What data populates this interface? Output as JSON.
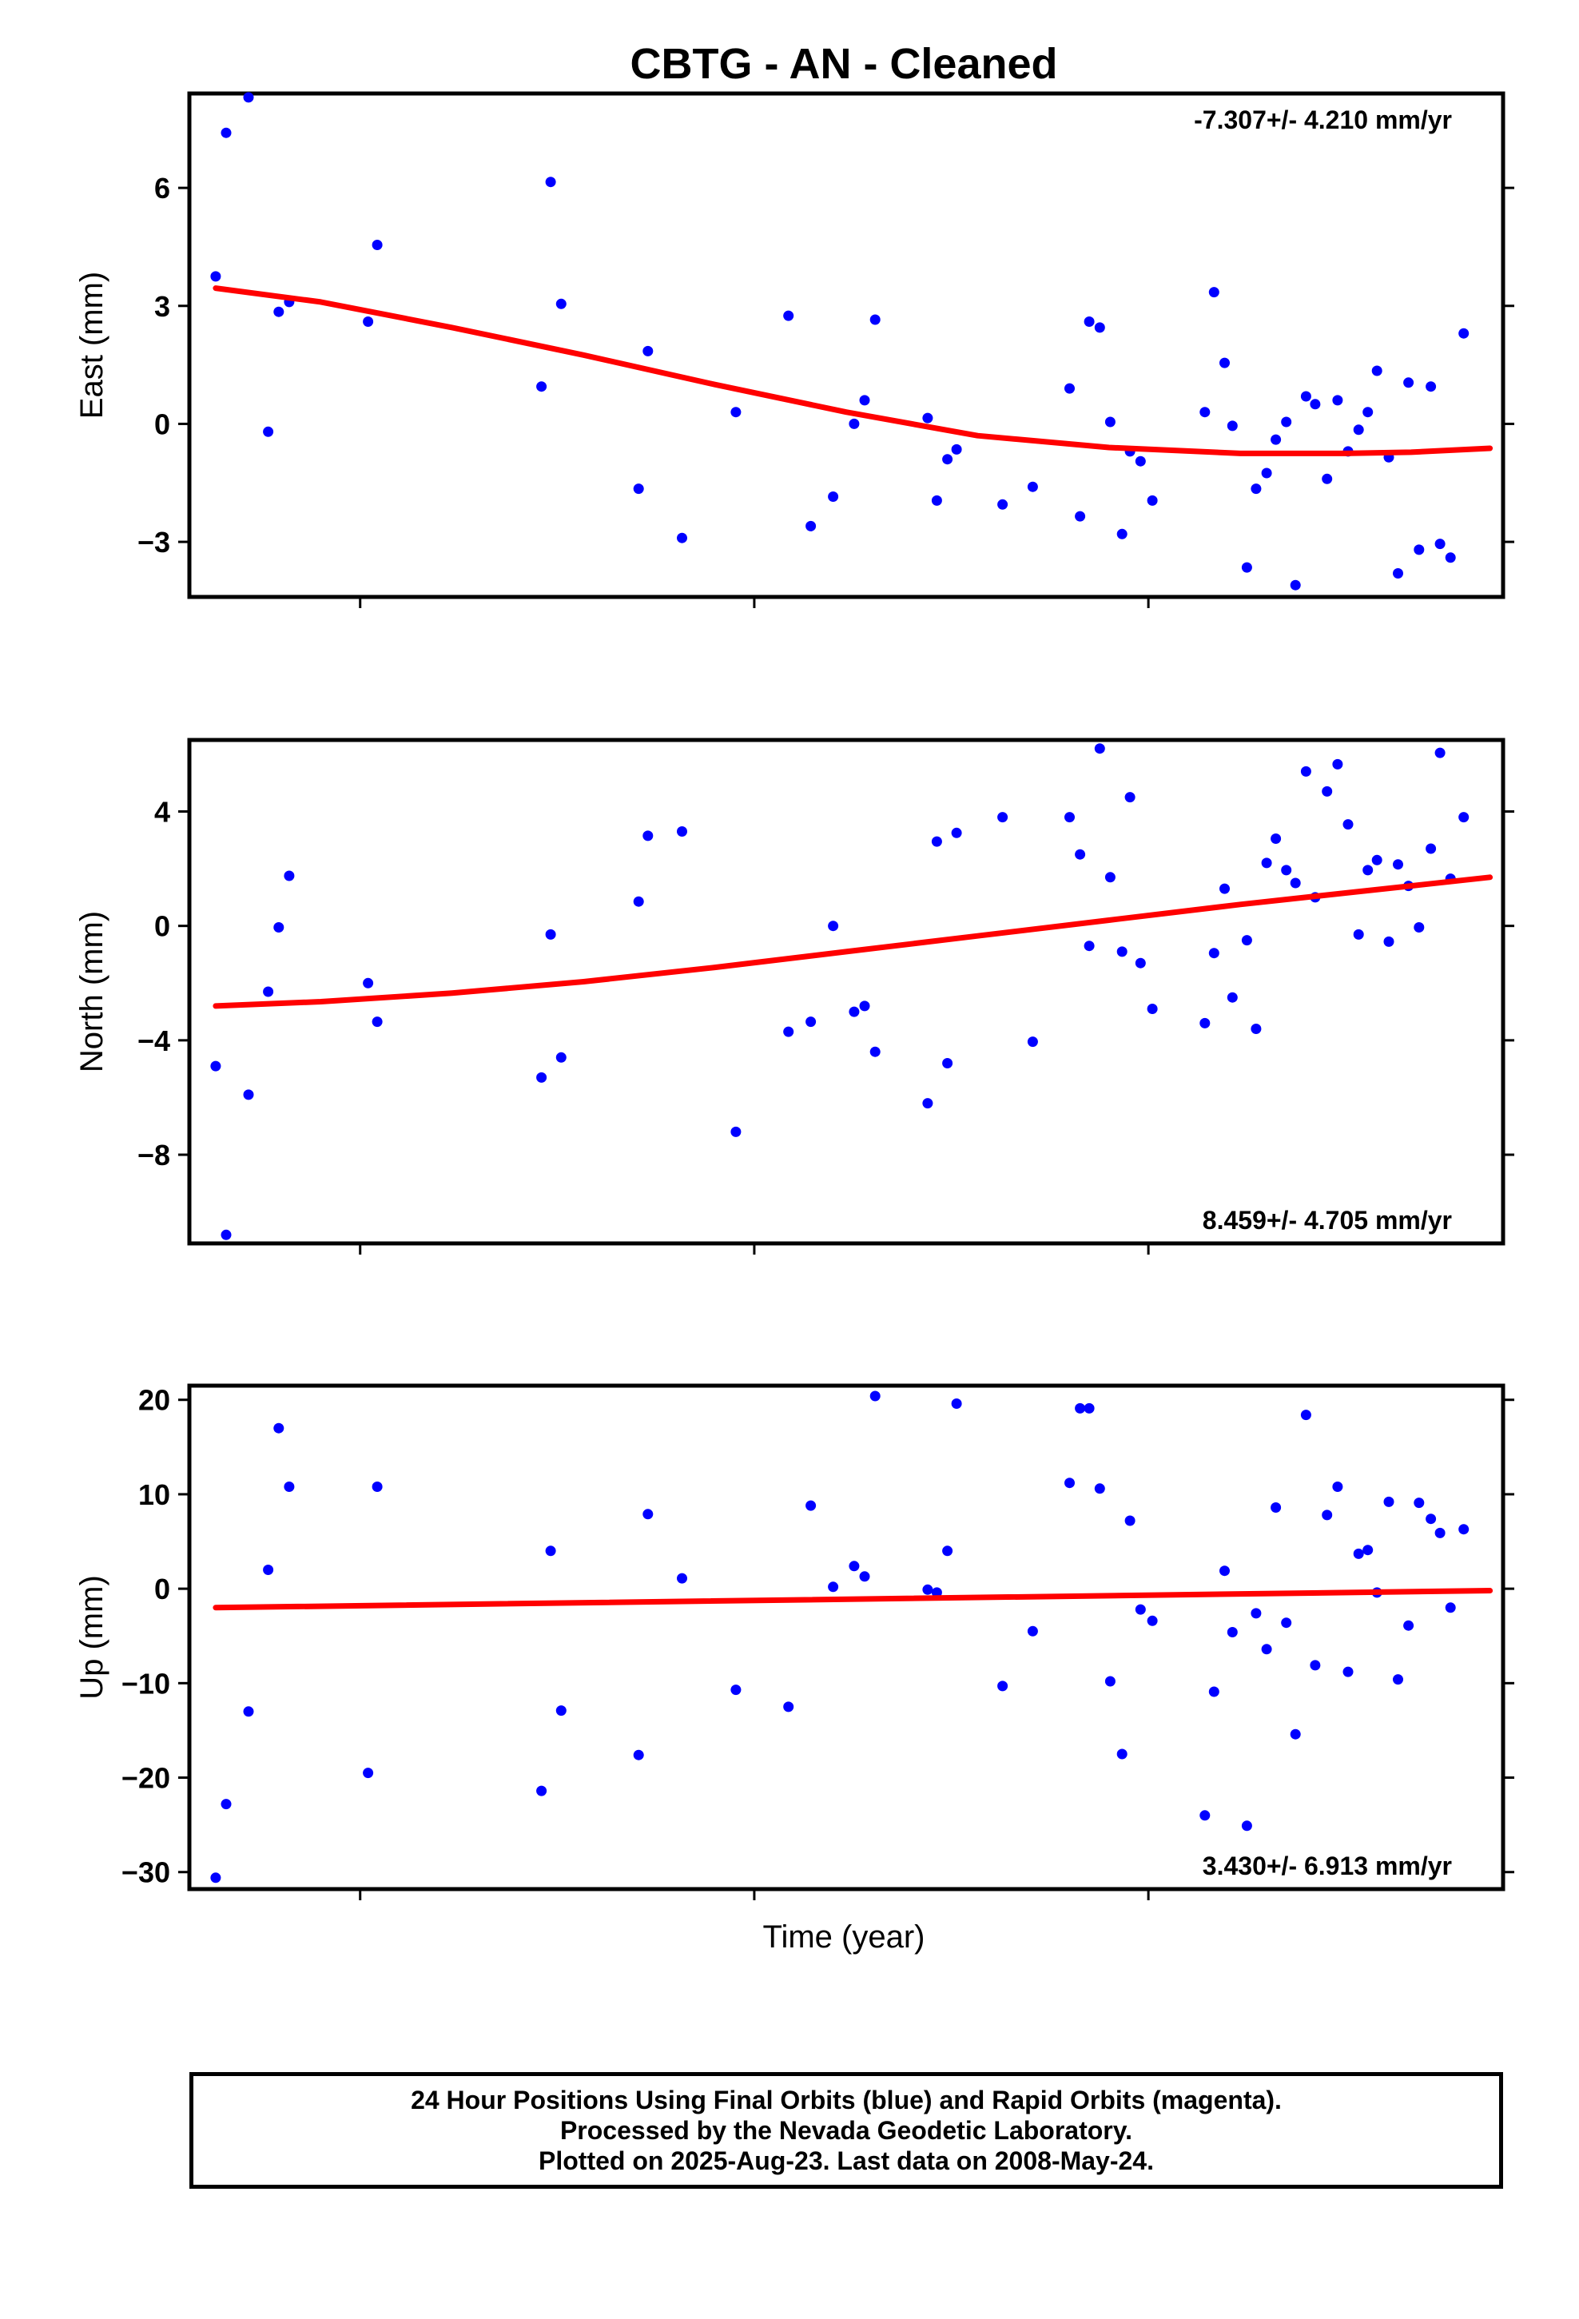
{
  "title": "CBTG  - AN - Cleaned",
  "xlabel": "Time (year)",
  "footer": {
    "line1": "24 Hour Positions Using Final Orbits (blue) and Rapid Orbits (magenta).",
    "line2": "Processed by the Nevada Geodetic Laboratory.",
    "line3": "Plotted on 2025-Aug-23. Last data on 2008-May-24."
  },
  "colors": {
    "points": "#0000ff",
    "fit": "#ff0000",
    "frame": "#000000"
  },
  "chart_data": [
    {
      "type": "scatter",
      "ylabel": "East (mm)",
      "rate_label": "-7.307+/- 4.210 mm/yr",
      "rate_position": "top-right",
      "ylim": [
        -4.4,
        8.4
      ],
      "yticks": [
        -3,
        0,
        3,
        6
      ],
      "ytick_labels": [
        "−3",
        "0",
        "3",
        "6"
      ],
      "xlim": [
        0,
        100
      ],
      "xticks": [
        13,
        43,
        73,
        103
      ],
      "grid": false,
      "x": [
        2,
        2.8,
        4.5,
        6,
        6.8,
        7.6,
        13.6,
        14.3,
        26.8,
        27.5,
        28.3,
        34.2,
        34.9,
        37.5,
        41.6,
        45.6,
        47.3,
        49,
        50.6,
        51.4,
        52.2,
        56.2,
        56.9,
        57.7,
        58.4,
        61.9,
        64.2,
        67,
        67.8,
        68.5,
        69.3,
        70.1,
        71,
        71.6,
        72.4,
        73.3,
        77.3,
        78,
        78.8,
        79.4,
        80.5,
        81.2,
        82,
        82.7,
        83.5,
        84.2,
        85,
        85.7,
        86.6,
        87.4,
        88.2,
        89,
        89.7,
        90.4,
        91.3,
        92,
        92.8,
        93.6,
        94.5,
        95.2,
        96,
        97
      ],
      "y": [
        3.75,
        7.4,
        8.3,
        -0.2,
        2.85,
        3.1,
        2.6,
        4.55,
        0.95,
        6.15,
        3.05,
        -1.65,
        1.85,
        -2.9,
        0.3,
        2.75,
        -2.6,
        -1.85,
        0,
        0.6,
        2.65,
        0.15,
        -1.95,
        -0.9,
        -0.65,
        -2.05,
        -1.6,
        0.9,
        -2.35,
        2.6,
        2.45,
        0.05,
        -2.8,
        -0.7,
        -0.95,
        -1.95,
        0.3,
        3.35,
        1.55,
        -0.05,
        -3.65,
        -1.65,
        -1.25,
        -0.4,
        0.05,
        -4.1,
        0.7,
        0.5,
        -1.4,
        0.6,
        -0.7,
        -0.15,
        0.3,
        1.35,
        -0.85,
        -3.8,
        1.05,
        -3.2,
        0.95,
        -3.05,
        -3.4,
        2.3
      ],
      "fit": {
        "x": [
          2,
          10,
          20,
          30,
          40,
          50,
          60,
          70,
          80,
          88,
          93,
          99
        ],
        "y": [
          3.45,
          3.1,
          2.45,
          1.75,
          1.0,
          0.3,
          -0.3,
          -0.6,
          -0.75,
          -0.75,
          -0.72,
          -0.62
        ]
      }
    },
    {
      "type": "scatter",
      "ylabel": "North (mm)",
      "rate_label": "8.459+/- 4.705 mm/yr",
      "rate_position": "bottom-right",
      "ylim": [
        -11.1,
        6.5
      ],
      "yticks": [
        -8,
        -4,
        0,
        4
      ],
      "ytick_labels": [
        "−8",
        "−4",
        "0",
        "4"
      ],
      "xlim": [
        0,
        100
      ],
      "xticks": [
        13,
        43,
        73,
        103
      ],
      "grid": false,
      "x": [
        2,
        2.8,
        4.5,
        6,
        6.8,
        7.6,
        13.6,
        14.3,
        26.8,
        27.5,
        28.3,
        34.2,
        34.9,
        37.5,
        41.6,
        45.6,
        47.3,
        49,
        50.6,
        51.4,
        52.2,
        56.2,
        56.9,
        57.7,
        58.4,
        61.9,
        64.2,
        67,
        67.8,
        68.5,
        69.3,
        70.1,
        71,
        71.6,
        72.4,
        73.3,
        77.3,
        78,
        78.8,
        79.4,
        80.5,
        81.2,
        82,
        82.7,
        83.5,
        84.2,
        85,
        85.7,
        86.6,
        87.4,
        88.2,
        89,
        89.7,
        90.4,
        91.3,
        92,
        92.8,
        93.6,
        94.5,
        95.2,
        96,
        97
      ],
      "y": [
        -4.9,
        -10.8,
        -5.9,
        -2.3,
        -0.05,
        1.75,
        -2.0,
        -3.35,
        -5.3,
        -0.3,
        -4.6,
        0.85,
        3.15,
        3.3,
        -7.2,
        -3.7,
        -3.35,
        0.0,
        -3.0,
        -2.8,
        -4.4,
        -6.2,
        2.95,
        -4.8,
        3.25,
        3.8,
        -4.05,
        3.8,
        2.5,
        -0.7,
        6.2,
        1.7,
        -0.9,
        4.5,
        -1.3,
        -2.9,
        -3.4,
        -0.95,
        1.3,
        -2.5,
        -0.5,
        -3.6,
        2.2,
        3.05,
        1.95,
        1.5,
        5.4,
        1.0,
        4.7,
        5.65,
        3.55,
        -0.3,
        1.95,
        2.3,
        -0.55,
        2.15,
        1.4,
        -0.05,
        2.7,
        6.05,
        1.65,
        3.8
      ],
      "fit": {
        "x": [
          2,
          10,
          20,
          30,
          40,
          50,
          60,
          70,
          80,
          88,
          93,
          99
        ],
        "y": [
          -2.8,
          -2.65,
          -2.35,
          -1.95,
          -1.45,
          -0.9,
          -0.35,
          0.2,
          0.75,
          1.15,
          1.4,
          1.7
        ]
      }
    },
    {
      "type": "scatter",
      "ylabel": "Up (mm)",
      "rate_label": "3.430+/- 6.913 mm/yr",
      "rate_position": "bottom-right",
      "ylim": [
        -31.8,
        21.5
      ],
      "yticks": [
        -30,
        -20,
        -10,
        0,
        10,
        20
      ],
      "ytick_labels": [
        "−30",
        "−20",
        "−10",
        "0",
        "10",
        "20"
      ],
      "xlim": [
        0,
        100
      ],
      "xticks": [
        13,
        43,
        73,
        103
      ],
      "grid": false,
      "x": [
        2,
        2.8,
        4.5,
        6,
        6.8,
        7.6,
        13.6,
        14.3,
        26.8,
        27.5,
        28.3,
        34.2,
        34.9,
        37.5,
        41.6,
        45.6,
        47.3,
        49,
        50.6,
        51.4,
        52.2,
        56.2,
        56.9,
        57.7,
        58.4,
        61.9,
        64.2,
        67,
        67.8,
        68.5,
        69.3,
        70.1,
        71,
        71.6,
        72.4,
        73.3,
        77.3,
        78,
        78.8,
        79.4,
        80.5,
        81.2,
        82,
        82.7,
        83.5,
        84.2,
        85,
        85.7,
        86.6,
        87.4,
        88.2,
        89,
        89.7,
        90.4,
        91.3,
        92,
        92.8,
        93.6,
        94.5,
        95.2,
        96,
        97
      ],
      "y": [
        -30.6,
        -22.8,
        -13,
        2,
        17,
        10.8,
        -19.5,
        10.8,
        -21.4,
        4,
        -12.9,
        -17.6,
        7.9,
        1.1,
        -10.7,
        -12.5,
        8.8,
        0.2,
        2.4,
        1.3,
        20.4,
        -0.1,
        -0.4,
        4,
        19.6,
        -10.3,
        -4.5,
        11.2,
        19.1,
        19.1,
        10.6,
        -9.8,
        -17.5,
        7.2,
        -2.2,
        -3.4,
        -24,
        -10.9,
        1.9,
        -4.6,
        -25.1,
        -2.6,
        -6.4,
        8.6,
        -3.6,
        -15.4,
        18.4,
        -8.1,
        7.8,
        10.8,
        -8.8,
        3.7,
        4.1,
        -0.4,
        9.2,
        -9.6,
        -3.9,
        9.1,
        7.4,
        5.9,
        -2,
        6.3
      ],
      "fit": {
        "x": [
          2,
          99
        ],
        "y": [
          -2.0,
          -0.2
        ]
      }
    }
  ]
}
